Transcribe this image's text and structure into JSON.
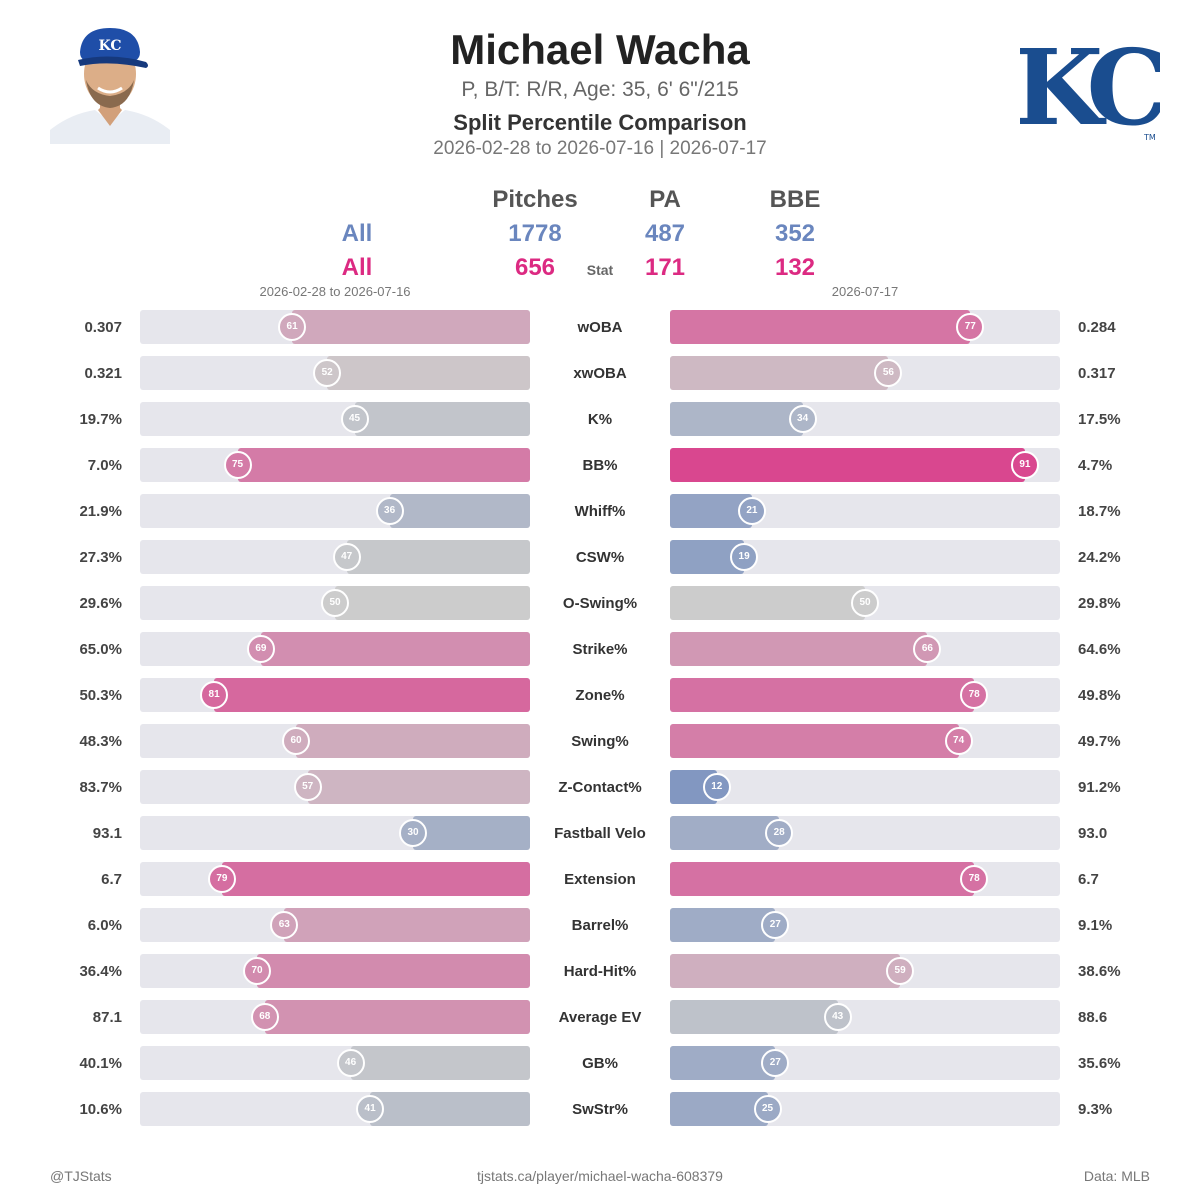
{
  "player": {
    "name": "Michael Wacha",
    "bio": "P, B/T: R/R, Age: 35, 6' 6\"/215",
    "comparison_title": "Split Percentile Comparison",
    "date_line": "2026-02-28 to 2026-07-16  |  2026-07-17",
    "team_logo_text": "KC",
    "team_logo_tm": "TM",
    "colors": {
      "team": "#1a4d8f",
      "blue": "#6a86be",
      "pink": "#dc2a82"
    }
  },
  "summary": {
    "columns": [
      "Pitches",
      "PA",
      "BBE"
    ],
    "stat_header": "Stat",
    "left": {
      "label": "All",
      "values": [
        "1778",
        "487",
        "352"
      ]
    },
    "right": {
      "label": "All",
      "values": [
        "656",
        "171",
        "132"
      ]
    }
  },
  "ranges": {
    "left": "2026-02-28 to 2026-07-16",
    "right": "2026-07-17"
  },
  "chart_data": {
    "type": "bar",
    "title": "Split Percentile Comparison",
    "percentile_range": [
      0,
      100
    ],
    "series": [
      {
        "name": "2026-02-28 to 2026-07-16",
        "percentiles": [
          61,
          52,
          45,
          75,
          36,
          47,
          50,
          69,
          81,
          60,
          57,
          30,
          79,
          63,
          70,
          68,
          46,
          41
        ]
      },
      {
        "name": "2026-07-17",
        "percentiles": [
          77,
          56,
          34,
          91,
          21,
          19,
          50,
          66,
          78,
          74,
          12,
          28,
          78,
          27,
          59,
          43,
          27,
          25
        ]
      }
    ],
    "rows": [
      {
        "stat": "wOBA",
        "left_value": "0.307",
        "left_pct": 61,
        "right_value": "0.284",
        "right_pct": 77
      },
      {
        "stat": "xwOBA",
        "left_value": "0.321",
        "left_pct": 52,
        "right_value": "0.317",
        "right_pct": 56
      },
      {
        "stat": "K%",
        "left_value": "19.7%",
        "left_pct": 45,
        "right_value": "17.5%",
        "right_pct": 34
      },
      {
        "stat": "BB%",
        "left_value": "7.0%",
        "left_pct": 75,
        "right_value": "4.7%",
        "right_pct": 91
      },
      {
        "stat": "Whiff%",
        "left_value": "21.9%",
        "left_pct": 36,
        "right_value": "18.7%",
        "right_pct": 21
      },
      {
        "stat": "CSW%",
        "left_value": "27.3%",
        "left_pct": 47,
        "right_value": "24.2%",
        "right_pct": 19
      },
      {
        "stat": "O-Swing%",
        "left_value": "29.6%",
        "left_pct": 50,
        "right_value": "29.8%",
        "right_pct": 50
      },
      {
        "stat": "Strike%",
        "left_value": "65.0%",
        "left_pct": 69,
        "right_value": "64.6%",
        "right_pct": 66
      },
      {
        "stat": "Zone%",
        "left_value": "50.3%",
        "left_pct": 81,
        "right_value": "49.8%",
        "right_pct": 78
      },
      {
        "stat": "Swing%",
        "left_value": "48.3%",
        "left_pct": 60,
        "right_value": "49.7%",
        "right_pct": 74
      },
      {
        "stat": "Z-Contact%",
        "left_value": "83.7%",
        "left_pct": 57,
        "right_value": "91.2%",
        "right_pct": 12
      },
      {
        "stat": "Fastball Velo",
        "left_value": "93.1",
        "left_pct": 30,
        "right_value": "93.0",
        "right_pct": 28
      },
      {
        "stat": "Extension",
        "left_value": "6.7",
        "left_pct": 79,
        "right_value": "6.7",
        "right_pct": 78
      },
      {
        "stat": "Barrel%",
        "left_value": "6.0%",
        "left_pct": 63,
        "right_value": "9.1%",
        "right_pct": 27
      },
      {
        "stat": "Hard-Hit%",
        "left_value": "36.4%",
        "left_pct": 70,
        "right_value": "38.6%",
        "right_pct": 59
      },
      {
        "stat": "Average EV",
        "left_value": "87.1",
        "left_pct": 68,
        "right_value": "88.6",
        "right_pct": 43
      },
      {
        "stat": "GB%",
        "left_value": "40.1%",
        "left_pct": 46,
        "right_value": "35.6%",
        "right_pct": 27
      },
      {
        "stat": "SwStr%",
        "left_value": "10.6%",
        "left_pct": 41,
        "right_value": "9.3%",
        "right_pct": 25
      }
    ]
  },
  "footer": {
    "left": "@TJStats",
    "center": "tjstats.ca/player/michael-wacha-608379",
    "right": "Data: MLB"
  }
}
